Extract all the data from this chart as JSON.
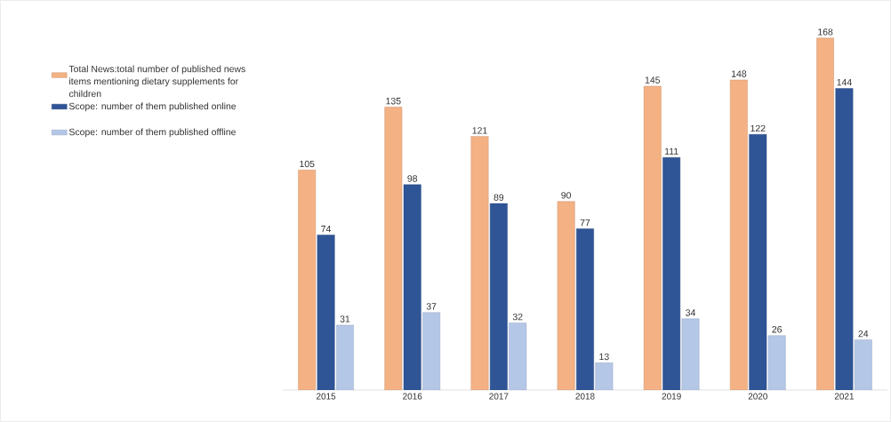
{
  "chart_data": {
    "type": "bar",
    "categories": [
      "2015",
      "2016",
      "2017",
      "2018",
      "2019",
      "2020",
      "2021"
    ],
    "series": [
      {
        "name": "Total News:total number of published news items mentioning dietary supplements for children",
        "color": "#f4b183",
        "values": [
          105,
          135,
          121,
          90,
          145,
          148,
          168
        ]
      },
      {
        "name": "Scope: number of them published online",
        "color": "#2f5597",
        "values": [
          74,
          98,
          89,
          77,
          111,
          122,
          144
        ]
      },
      {
        "name": "Scope: number  of them published offline",
        "color": "#b4c7e7",
        "values": [
          31,
          37,
          32,
          13,
          34,
          26,
          24
        ]
      }
    ],
    "data_labels": true,
    "legend": "left"
  }
}
